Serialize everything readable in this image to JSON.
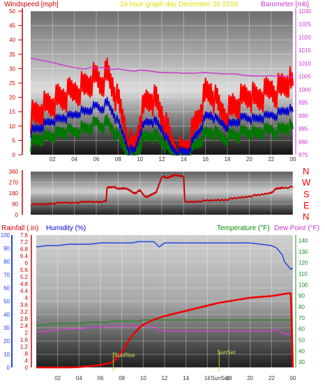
{
  "header": {
    "windspeed_label": "Windspeed [mph]",
    "title": "24 hour graph day   December 20 2018",
    "barometer_label": "Barometer [mb]"
  },
  "bottom_header": {
    "rainfall_label": "Rainfall (.in)",
    "humidity_label": "Humidity (%)",
    "temperature_label": "Temperature (°F)",
    "dewpoint_label": "Dew Point (°F)"
  },
  "colors": {
    "wind_gust": "#ff0000",
    "wind_avg": "#0000cc",
    "wind_low": "#007700",
    "barometer": "#cc33cc",
    "direction": "#cc0000",
    "rain": "#ee0000",
    "humidity": "#2244dd",
    "temperature": "#228822",
    "dewpoint": "#cc44cc",
    "left_axis_text": "#cc0000",
    "header_blue": "#0000cc",
    "header_green": "#008800",
    "header_magenta": "#cc33cc",
    "title_yellow": "#dddd00",
    "marker_yellow": "#cccc33"
  },
  "x_axis": {
    "hour_labels": [
      "02",
      "04",
      "06",
      "08",
      "10",
      "12",
      "14",
      "16",
      "18",
      "20",
      "22",
      "00"
    ],
    "sunset_bottom_label": "SunSet"
  },
  "chart_data": [
    {
      "type": "line",
      "name": "wind-panel",
      "x_hours": [
        0,
        0.5,
        1,
        1.5,
        2,
        2.5,
        3,
        3.5,
        4,
        4.5,
        5,
        5.5,
        6,
        6.5,
        7,
        7.5,
        8,
        8.5,
        9,
        9.5,
        10,
        10.5,
        11,
        11.5,
        12,
        12.5,
        13,
        13.5,
        14,
        14.5,
        15,
        15.5,
        16,
        16.5,
        17,
        17.5,
        18,
        18.5,
        19,
        19.5,
        20,
        20.5,
        21,
        21.5,
        22,
        22.5,
        23,
        23.5,
        24
      ],
      "series": [
        {
          "axis": "left",
          "values": [
            13,
            14,
            16,
            17,
            18,
            19,
            20,
            21,
            22,
            23,
            24,
            26,
            27,
            25,
            28,
            24,
            18,
            12,
            4,
            2,
            12,
            18,
            20,
            18,
            14,
            8,
            3,
            1,
            1,
            4,
            10,
            15,
            21,
            22,
            18,
            15,
            14,
            17,
            18,
            20,
            21,
            19,
            20,
            21,
            23,
            22,
            24,
            26,
            24
          ]
        },
        {
          "axis": "left",
          "values": [
            8,
            9,
            10,
            11,
            12,
            12,
            13,
            13,
            14,
            15,
            15,
            16,
            17,
            16,
            18,
            15,
            11,
            7,
            2,
            1,
            8,
            11,
            12,
            11,
            9,
            5,
            2,
            1,
            1,
            2,
            6,
            9,
            13,
            14,
            12,
            11,
            10,
            11,
            12,
            13,
            13,
            12,
            13,
            13,
            14,
            14,
            15,
            16,
            15
          ]
        },
        {
          "axis": "left",
          "values": [
            4,
            5,
            6,
            6,
            7,
            7,
            8,
            8,
            8,
            9,
            9,
            10,
            11,
            10,
            11,
            9,
            6,
            3,
            1,
            0,
            4,
            6,
            7,
            6,
            5,
            2,
            1,
            0,
            0,
            1,
            3,
            5,
            7,
            8,
            7,
            6,
            6,
            7,
            7,
            8,
            8,
            7,
            8,
            8,
            9,
            8,
            9,
            10,
            9
          ]
        },
        {
          "axis": "right",
          "values": [
            1012,
            1011.6,
            1011.2,
            1010.8,
            1010.3,
            1009.8,
            1009.3,
            1008.8,
            1008.4,
            1008,
            1007.9,
            1008.4,
            1008.2,
            1008.4,
            1008,
            1007.7,
            1007.9,
            1007.6,
            1007.2,
            1007,
            1007.4,
            1007.3,
            1007,
            1006.7,
            1006.5,
            1006.5,
            1006.4,
            1006.4,
            1006.2,
            1006.3,
            1006.2,
            1006.4,
            1006.5,
            1006.3,
            1006.2,
            1006,
            1006,
            1006,
            1005.8,
            1005.4,
            1005.3,
            1005.2,
            1005.2,
            1005.2,
            1005.3,
            1005.1,
            1005,
            1005,
            1004.7
          ]
        }
      ],
      "y_left_ticks": [
        0,
        5,
        10,
        15,
        20,
        25,
        30,
        35,
        40,
        45,
        50
      ],
      "y_right_ticks": [
        975,
        980,
        985,
        990,
        995,
        1000,
        1005,
        1010,
        1015,
        1020,
        1025,
        1030
      ],
      "ylim_left": [
        0,
        50
      ],
      "ylim_right": [
        975,
        1030
      ]
    },
    {
      "type": "line",
      "name": "direction-panel",
      "x_hours": [
        0,
        1,
        2,
        3,
        4,
        5,
        6,
        6.9,
        7,
        7.5,
        8,
        8.5,
        9,
        9.5,
        10,
        10.5,
        11,
        11.5,
        12,
        12.5,
        13,
        13.5,
        14,
        14.1,
        15,
        16,
        17,
        18,
        19,
        20,
        21,
        22,
        22.5,
        23,
        24
      ],
      "series": [
        {
          "values": [
            85,
            87,
            95,
            98,
            102,
            105,
            108,
            110,
            228,
            235,
            215,
            225,
            205,
            180,
            200,
            150,
            160,
            190,
            320,
            305,
            330,
            325,
            320,
            105,
            110,
            115,
            122,
            128,
            140,
            155,
            165,
            185,
            215,
            225,
            230
          ]
        }
      ],
      "y_ticks": [
        0,
        90,
        180,
        270,
        360
      ],
      "ylim": [
        0,
        360
      ],
      "direction_labels": [
        "N",
        "W",
        "S",
        "E",
        "N"
      ]
    },
    {
      "type": "line",
      "name": "rain-humidity-temperature-panel",
      "x_hours": [
        0,
        1,
        2,
        3,
        4,
        5,
        6,
        6.5,
        7,
        7.5,
        8,
        8.5,
        9,
        9.5,
        10,
        10.5,
        11,
        11.5,
        12,
        13,
        14,
        15,
        16,
        17,
        18,
        19,
        20,
        21,
        22,
        22.5,
        23,
        23.2,
        23.4,
        23.6,
        23.8,
        24
      ],
      "series": [
        {
          "axis": "left-outer",
          "values": [
            0,
            0,
            0,
            0,
            0.02,
            0.08,
            0.14,
            0.2,
            0.28,
            0.5,
            0.9,
            1.4,
            1.85,
            2.2,
            2.45,
            2.6,
            2.75,
            2.85,
            2.95,
            3.1,
            3.25,
            3.4,
            3.55,
            3.7,
            3.8,
            3.9,
            4,
            4.05,
            4.1,
            4.15,
            4.2,
            4.22,
            4.24,
            4.25,
            4.25,
            0
          ]
        },
        {
          "axis": "left-inner",
          "values": [
            91,
            92,
            92,
            93,
            93,
            93,
            94,
            94,
            94,
            94,
            94,
            94,
            94,
            95,
            95,
            95,
            95,
            91,
            94,
            94,
            94,
            94,
            94,
            94,
            94,
            94,
            94,
            93,
            92,
            90,
            85,
            80,
            78,
            76,
            74,
            75
          ]
        },
        {
          "axis": "right",
          "values": [
            63,
            64,
            65,
            65,
            65,
            66,
            66,
            66,
            67,
            67,
            67,
            67,
            67,
            67,
            68,
            68,
            68,
            68,
            68,
            68,
            68,
            68,
            68,
            68,
            68,
            68,
            68,
            68,
            68,
            68,
            68,
            68,
            68,
            68,
            68,
            68
          ]
        },
        {
          "axis": "right",
          "values": [
            57,
            58,
            59,
            60,
            60,
            61,
            61,
            62,
            62,
            62,
            63,
            62,
            63,
            62,
            63,
            62,
            63,
            58,
            58,
            58,
            58,
            58,
            58,
            58,
            58,
            58,
            58,
            58,
            58,
            60,
            56,
            56,
            55,
            55,
            55,
            55
          ]
        }
      ],
      "y_left_outer_ticks": [
        0,
        0.4,
        0.8,
        1.2,
        1.6,
        2,
        2.4,
        2.8,
        3.2,
        3.6,
        4,
        4.4,
        4.8,
        5.2,
        5.6,
        6,
        6.4,
        6.8,
        7.2,
        7.6
      ],
      "y_left_outer_tick_labels": [
        "0",
        ".4",
        ".8",
        "1.2",
        "1.6",
        "2",
        "2.4",
        "2.8",
        "3.2",
        "3.6",
        "4",
        "4.4",
        "4.8",
        "5.2",
        "5.6",
        "6",
        "6.4",
        "6.8",
        "7.2",
        "7.6"
      ],
      "y_left_inner_ticks": [
        0,
        10,
        20,
        30,
        40,
        50,
        60,
        70,
        80,
        90,
        100
      ],
      "y_right_ticks": [
        30,
        40,
        50,
        60,
        70,
        80,
        90,
        100,
        110,
        120,
        130,
        140
      ],
      "ylim_left_outer": [
        0,
        7.6
      ],
      "ylim_left_inner": [
        0,
        100
      ],
      "ylim_right": [
        25,
        145
      ],
      "annotations": [
        "SunRise",
        "SunSet"
      ],
      "annotation_hours": [
        7.2,
        17.1
      ]
    }
  ]
}
